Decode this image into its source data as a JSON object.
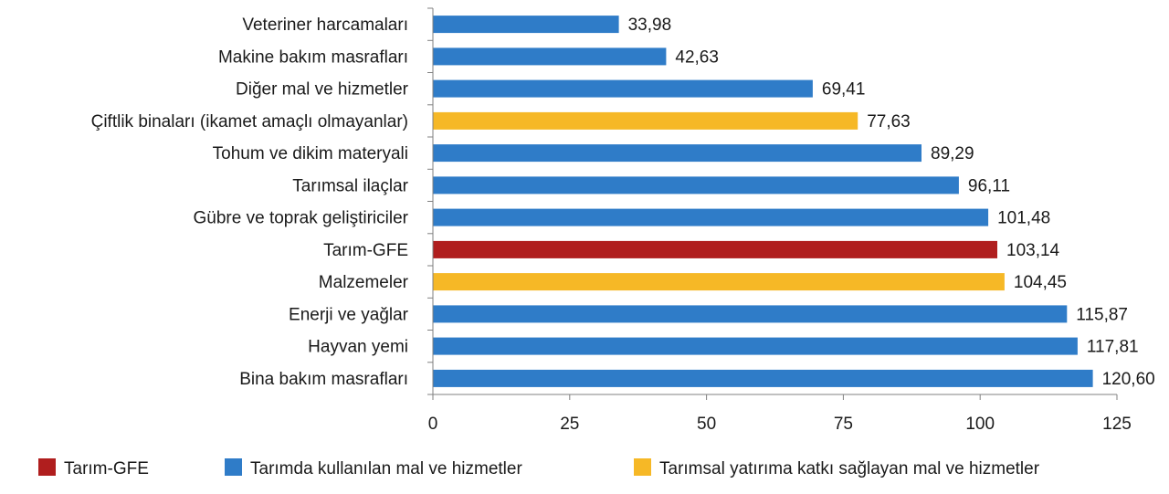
{
  "chart_data": {
    "type": "bar",
    "orientation": "horizontal",
    "categories": [
      "Veteriner harcamaları",
      "Makine bakım masrafları",
      "Diğer mal ve hizmetler",
      "Çiftlik binaları (ikamet amaçlı olmayanlar)",
      "Tohum ve dikim materyali",
      "Tarımsal ilaçlar",
      "Gübre ve toprak geliştiriciler",
      "Tarım-GFE",
      "Malzemeler",
      "Enerji ve yağlar",
      "Hayvan yemi",
      "Bina bakım masrafları"
    ],
    "values": [
      33.98,
      42.63,
      69.41,
      77.63,
      89.29,
      96.11,
      101.48,
      103.14,
      104.45,
      115.87,
      117.81,
      120.6
    ],
    "value_labels": [
      "33,98",
      "42,63",
      "69,41",
      "77,63",
      "89,29",
      "96,11",
      "101,48",
      "103,14",
      "104,45",
      "115,87",
      "117,81",
      "120,60"
    ],
    "groups": [
      1,
      1,
      1,
      2,
      1,
      1,
      1,
      0,
      2,
      1,
      1,
      1
    ],
    "xlim": [
      0,
      125
    ],
    "xticks": [
      0,
      25,
      50,
      75,
      100,
      125
    ],
    "legend_position": "bottom",
    "legend": [
      {
        "name": "Tarım-GFE",
        "color": "#b01e1e"
      },
      {
        "name": "Tarımda kullanılan mal ve hizmetler",
        "color": "#2f7cc8"
      },
      {
        "name": "Tarımsal yatırıma katkı sağlayan mal ve hizmetler",
        "color": "#f6b826"
      }
    ],
    "grid": false
  }
}
